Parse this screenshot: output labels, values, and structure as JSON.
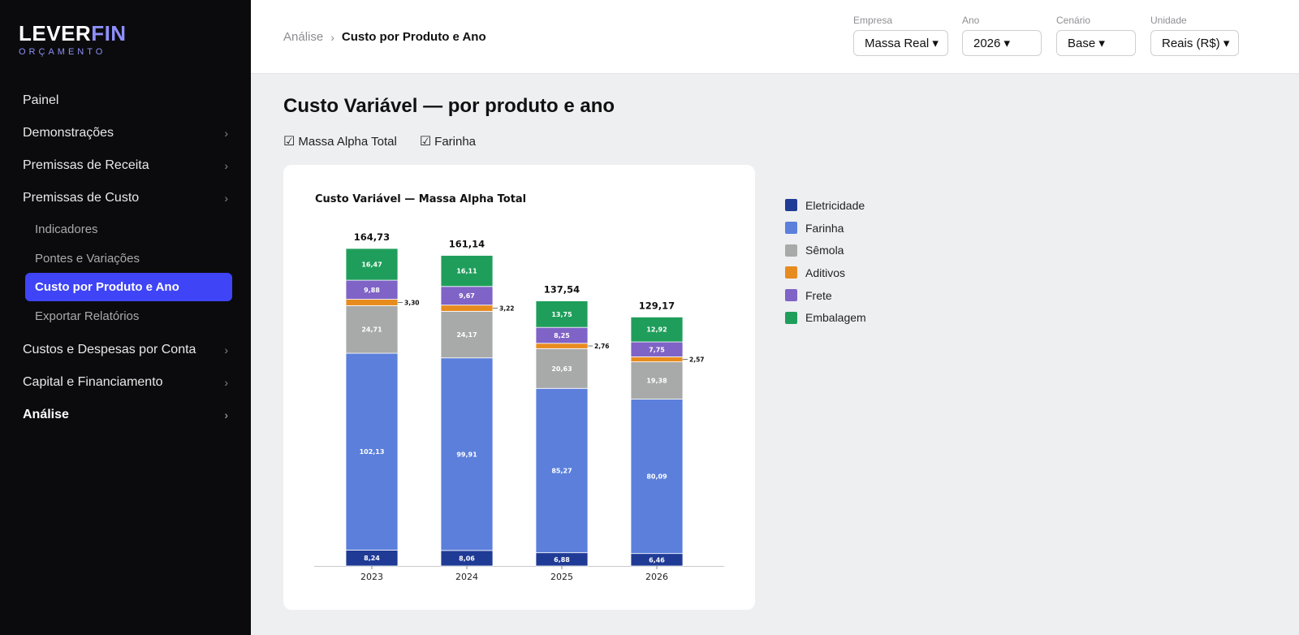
{
  "brand": {
    "name_main": "LEVER",
    "name_accent": "FIN",
    "subtitle": "ORÇAMENTO",
    "accent_color": "#8e8ff8"
  },
  "sidebar": {
    "items": [
      {
        "label": "Painel",
        "chevron": ""
      },
      {
        "label": "Demonstrações",
        "chevron": "›"
      },
      {
        "label": "Premissas de Receita",
        "chevron": "›"
      },
      {
        "label": "Premissas de Custo",
        "chevron": "›"
      }
    ],
    "subitems": [
      {
        "label": "Indicadores"
      },
      {
        "label": "Pontes e Variações"
      },
      {
        "label": "Custo por Produto e Ano",
        "active": true
      },
      {
        "label": "Exportar Relatórios"
      }
    ],
    "items_after": [
      {
        "label": "Custos e Despesas por Conta",
        "chevron": "›"
      },
      {
        "label": "Capital e Financiamento",
        "chevron": "›"
      },
      {
        "label": "Análise",
        "chevron": "›",
        "bold": true
      }
    ],
    "active_color": "#3f44f7"
  },
  "breadcrumb": {
    "parent": "Análise",
    "separator": "›",
    "current": "Custo por Produto e Ano"
  },
  "filters": [
    {
      "label": "Empresa",
      "value": "Massa Real ▾"
    },
    {
      "label": "Ano",
      "value": "2026 ▾"
    },
    {
      "label": "Cenário",
      "value": "Base ▾"
    },
    {
      "label": "Unidade",
      "value": "Reais (R$) ▾"
    }
  ],
  "page": {
    "title": "Custo Variável — por produto e ano",
    "toggles": [
      {
        "checkbox": "☑",
        "label": "Massa Alpha Total"
      },
      {
        "checkbox": "☑",
        "label": "Farinha"
      }
    ]
  },
  "chart_data": {
    "type": "bar",
    "stacked": true,
    "title": "Custo Variável — Massa Alpha Total",
    "categories": [
      "2023",
      "2024",
      "2025",
      "2026"
    ],
    "series": [
      {
        "name": "Eletricidade",
        "color": "#1f3b96",
        "values": [
          8.24,
          8.06,
          6.88,
          6.46
        ],
        "labels": [
          "8,24",
          "8,06",
          "6,88",
          "6,46"
        ]
      },
      {
        "name": "Farinha",
        "color": "#5b7fdb",
        "values": [
          102.13,
          99.91,
          85.27,
          80.09
        ],
        "labels": [
          "102,13",
          "99,91",
          "85,27",
          "80,09"
        ]
      },
      {
        "name": "Sêmola",
        "color": "#a8a9a9",
        "values": [
          24.71,
          24.17,
          20.63,
          19.38
        ],
        "labels": [
          "24,71",
          "24,17",
          "20,63",
          "19,38"
        ]
      },
      {
        "name": "Aditivos",
        "color": "#e88b1e",
        "values": [
          3.3,
          3.22,
          2.76,
          2.57
        ],
        "labels": [
          "3,30",
          "3,22",
          "2,76",
          "2,57"
        ],
        "label_outside": true
      },
      {
        "name": "Frete",
        "color": "#7f63c6",
        "values": [
          9.88,
          9.67,
          8.25,
          7.75
        ],
        "labels": [
          "9,88",
          "9,67",
          "8,25",
          "7,75"
        ]
      },
      {
        "name": "Embalagem",
        "color": "#1f9e5b",
        "values": [
          16.47,
          16.11,
          13.75,
          12.92
        ],
        "labels": [
          "16,47",
          "16,11",
          "13,75",
          "12,92"
        ]
      }
    ],
    "totals": [
      "164,73",
      "161,14",
      "137,54",
      "129,17"
    ],
    "ylim": [
      0,
      164.73
    ],
    "grid": false,
    "yaxis_visible": false,
    "legend_position": "right"
  }
}
